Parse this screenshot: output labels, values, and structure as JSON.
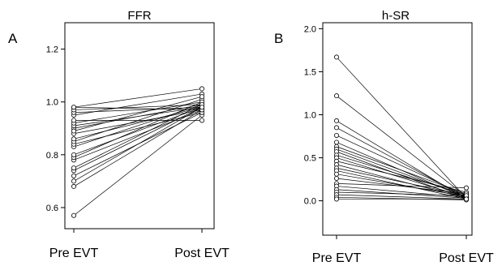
{
  "chart_data": [
    {
      "type": "line",
      "panel_label": "A",
      "title": "FFR",
      "categories": [
        "Pre EVT",
        "Post EVT"
      ],
      "ylim": [
        0.52,
        1.3
      ],
      "yticks": [
        "0.6",
        "0.8",
        "1.0",
        "1.2"
      ],
      "ytick_values": [
        0.6,
        0.8,
        1.0,
        1.2
      ],
      "pairs": [
        [
          0.57,
          0.95
        ],
        [
          0.68,
          0.97
        ],
        [
          0.7,
          0.98
        ],
        [
          0.72,
          0.96
        ],
        [
          0.74,
          0.98
        ],
        [
          0.75,
          0.99
        ],
        [
          0.78,
          0.97
        ],
        [
          0.79,
          1.0
        ],
        [
          0.8,
          0.98
        ],
        [
          0.83,
          0.99
        ],
        [
          0.84,
          0.96
        ],
        [
          0.85,
          1.01
        ],
        [
          0.88,
          0.97
        ],
        [
          0.9,
          0.99
        ],
        [
          0.91,
          0.98
        ],
        [
          0.92,
          1.0
        ],
        [
          0.93,
          0.93
        ],
        [
          0.95,
          1.03
        ],
        [
          0.96,
          0.98
        ],
        [
          0.97,
          0.99
        ],
        [
          0.98,
          1.05
        ],
        [
          0.98,
          0.97
        ],
        [
          0.86,
          0.98
        ],
        [
          0.89,
          1.02
        ]
      ]
    },
    {
      "type": "line",
      "panel_label": "B",
      "title": "h-SR",
      "categories": [
        "Pre EVT",
        "Post EVT"
      ],
      "ylim": [
        -0.4,
        2.07
      ],
      "yticks": [
        "0.0",
        "0.5",
        "1.0",
        "1.5",
        "2.0"
      ],
      "ytick_values": [
        0.0,
        0.5,
        1.0,
        1.5,
        2.0
      ],
      "pairs": [
        [
          1.67,
          0.03
        ],
        [
          1.22,
          0.05
        ],
        [
          0.93,
          0.02
        ],
        [
          0.85,
          0.04
        ],
        [
          0.76,
          0.06
        ],
        [
          0.68,
          0.03
        ],
        [
          0.63,
          0.08
        ],
        [
          0.6,
          0.05
        ],
        [
          0.57,
          0.02
        ],
        [
          0.53,
          0.07
        ],
        [
          0.5,
          0.04
        ],
        [
          0.46,
          0.1
        ],
        [
          0.42,
          0.03
        ],
        [
          0.38,
          0.06
        ],
        [
          0.35,
          0.02
        ],
        [
          0.31,
          0.05
        ],
        [
          0.26,
          0.08
        ],
        [
          0.2,
          0.15
        ],
        [
          0.17,
          0.04
        ],
        [
          0.13,
          0.03
        ],
        [
          0.1,
          0.06
        ],
        [
          0.07,
          0.02
        ],
        [
          0.04,
          0.01
        ],
        [
          0.02,
          0.02
        ]
      ]
    }
  ]
}
